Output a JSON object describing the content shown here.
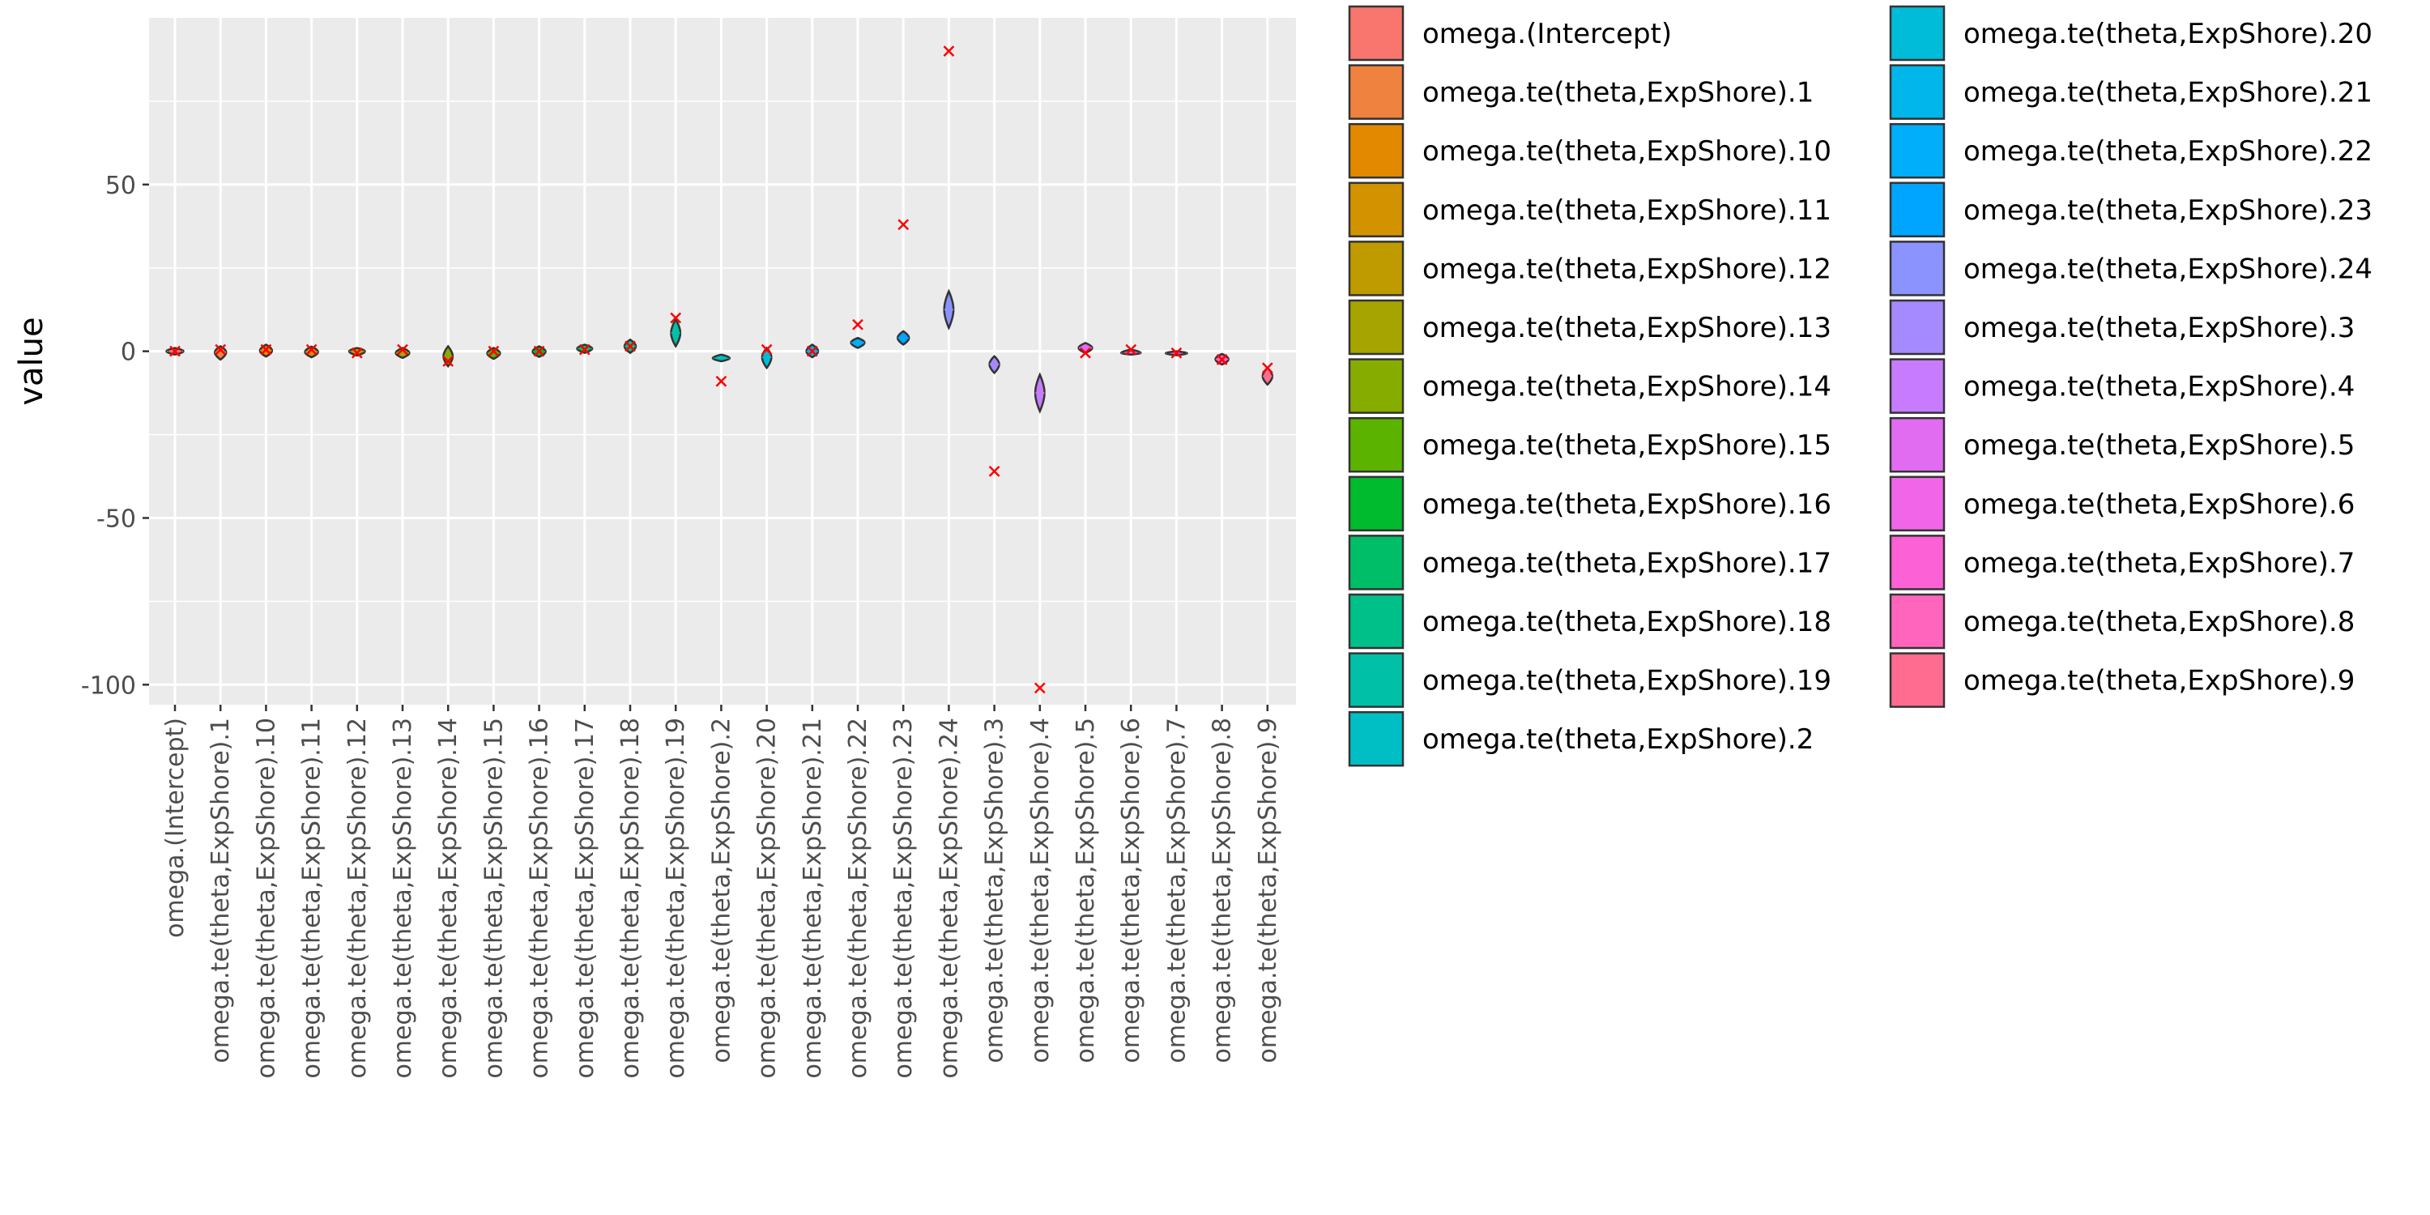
{
  "chart_data": {
    "type": "violin",
    "title": "",
    "xlabel": "",
    "ylabel": "value",
    "ylim": [
      -106,
      100
    ],
    "yticks": [
      -100,
      -50,
      0,
      50
    ],
    "grid": true,
    "legend_position": "right",
    "legend_columns": 2,
    "categories": [
      "omega.(Intercept)",
      "omega.te(theta,ExpShore).1",
      "omega.te(theta,ExpShore).10",
      "omega.te(theta,ExpShore).11",
      "omega.te(theta,ExpShore).12",
      "omega.te(theta,ExpShore).13",
      "omega.te(theta,ExpShore).14",
      "omega.te(theta,ExpShore).15",
      "omega.te(theta,ExpShore).16",
      "omega.te(theta,ExpShore).17",
      "omega.te(theta,ExpShore).18",
      "omega.te(theta,ExpShore).19",
      "omega.te(theta,ExpShore).2",
      "omega.te(theta,ExpShore).20",
      "omega.te(theta,ExpShore).21",
      "omega.te(theta,ExpShore).22",
      "omega.te(theta,ExpShore).23",
      "omega.te(theta,ExpShore).24",
      "omega.te(theta,ExpShore).3",
      "omega.te(theta,ExpShore).4",
      "omega.te(theta,ExpShore).5",
      "omega.te(theta,ExpShore).6",
      "omega.te(theta,ExpShore).7",
      "omega.te(theta,ExpShore).8",
      "omega.te(theta,ExpShore).9"
    ],
    "colors": [
      "#F8766D",
      "#F0823F",
      "#E38900",
      "#D39200",
      "#BF9B00",
      "#A6A400",
      "#87AC00",
      "#5BB300",
      "#00BB2D",
      "#00BE67",
      "#00C08A",
      "#00C1A8",
      "#00BFC4",
      "#00BCD8",
      "#00B6EB",
      "#00AEFA",
      "#00A5FF",
      "#8B93FF",
      "#A58AFF",
      "#C77CFF",
      "#E16CF2",
      "#F166E9",
      "#FC61D5",
      "#FF65BC",
      "#FF6C90"
    ],
    "distribution_center": [
      0,
      -0.3,
      0.2,
      -0.2,
      0,
      -0.5,
      -1.5,
      -0.6,
      -0.1,
      0.8,
      1.5,
      5.5,
      -2.1,
      -1.8,
      0,
      2.6,
      4.0,
      12.5,
      -3.9,
      -12.5,
      1.0,
      -0.5,
      -0.6,
      -2.4,
      -7.5
    ],
    "distribution_range": [
      [
        -1.0,
        1.0
      ],
      [
        -2.5,
        1.5
      ],
      [
        -1.6,
        2.0
      ],
      [
        -1.8,
        1.4
      ],
      [
        -1.3,
        1.0
      ],
      [
        -2.0,
        1.0
      ],
      [
        -4.5,
        1.5
      ],
      [
        -2.3,
        1.0
      ],
      [
        -1.7,
        1.5
      ],
      [
        -0.5,
        2.0
      ],
      [
        -0.5,
        3.5
      ],
      [
        1.5,
        9.5
      ],
      [
        -3.0,
        -1.0
      ],
      [
        -5.0,
        1.0
      ],
      [
        -1.8,
        2.0
      ],
      [
        1.0,
        4.0
      ],
      [
        2.0,
        6.0
      ],
      [
        7.0,
        18.0
      ],
      [
        -6.5,
        -1.5
      ],
      [
        -18.0,
        -7.0
      ],
      [
        -0.5,
        2.5
      ],
      [
        -1.0,
        0.5
      ],
      [
        -1.2,
        0.0
      ],
      [
        -4.0,
        -0.8
      ],
      [
        -10.0,
        -5.0
      ]
    ],
    "true_value_marker": [
      0,
      0.5,
      0.5,
      0.5,
      -0.5,
      0.5,
      -3,
      0,
      0,
      0.5,
      1.5,
      10,
      -9,
      0.5,
      0,
      8,
      38,
      90,
      -36,
      -101,
      -0.5,
      0.5,
      -0.5,
      -2.5,
      -5
    ]
  }
}
